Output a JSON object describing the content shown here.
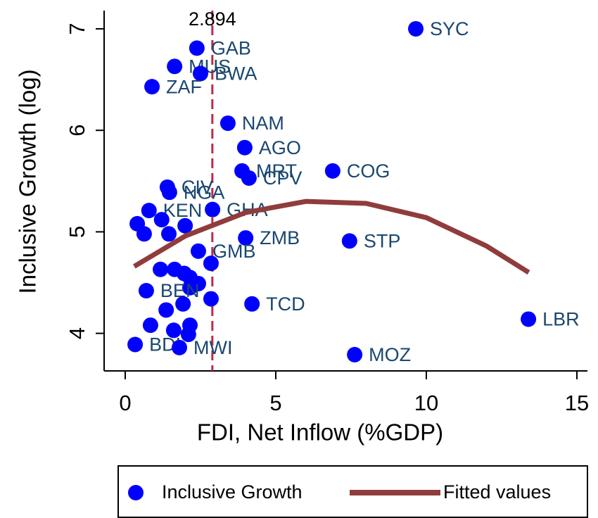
{
  "chart_data": {
    "type": "scatter",
    "x_label": "FDI, Net Inflow (%GDP)",
    "y_label": "Inclusive Growth (log)",
    "xlim": [
      -0.7,
      15.35
    ],
    "ylim": [
      3.63,
      7.18
    ],
    "xticks": [
      0,
      5,
      10,
      15
    ],
    "yticks": [
      4,
      5,
      6,
      7
    ],
    "reference_line": {
      "x": 2.894,
      "color": "#c0284a"
    },
    "series": [
      {
        "name": "Inclusive Growth",
        "type": "scatter",
        "color": "#0000ff",
        "label_color": "#1a476f",
        "x": [
          9.65,
          2.38,
          1.64,
          2.5,
          0.89,
          3.41,
          3.97,
          3.88,
          4.11,
          6.89,
          1.4,
          1.47,
          0.79,
          2.9,
          0.4,
          1.21,
          0.63,
          1.99,
          1.45,
          4.0,
          7.45,
          2.43,
          2.85,
          1.17,
          1.64,
          1.96,
          2.15,
          2.43,
          2.15,
          0.7,
          2.85,
          4.21,
          1.92,
          1.36,
          13.39,
          0.84,
          2.15,
          1.61,
          2.1,
          0.33,
          1.8,
          7.62
        ],
        "values": [
          7.0,
          6.81,
          6.63,
          6.56,
          6.43,
          6.07,
          5.83,
          5.6,
          5.53,
          5.6,
          5.44,
          5.39,
          5.21,
          5.22,
          5.08,
          5.12,
          4.98,
          5.06,
          4.98,
          4.94,
          4.91,
          4.81,
          4.69,
          4.63,
          4.63,
          4.59,
          4.55,
          4.49,
          4.45,
          4.42,
          4.34,
          4.29,
          4.29,
          4.23,
          4.14,
          4.08,
          4.08,
          4.03,
          3.99,
          3.89,
          3.86,
          3.79
        ],
        "labels": [
          "SYC",
          "GAB",
          "MUS",
          "BWA",
          "ZAF",
          "NAM",
          "AGO",
          "MRT",
          "CPV",
          "COG",
          "CIV",
          "NGA",
          "KEN",
          "GHA",
          null,
          null,
          null,
          null,
          null,
          "ZMB",
          "STP",
          "GMB",
          null,
          null,
          null,
          null,
          null,
          null,
          null,
          "BEN",
          null,
          "TCD",
          null,
          null,
          "LBR",
          null,
          null,
          null,
          null,
          "BDI",
          "MWI",
          "MOZ"
        ]
      },
      {
        "name": "Fitted values",
        "type": "line",
        "color": "#903c3c",
        "x": [
          0.3,
          2,
          4,
          6,
          8,
          10,
          12,
          13.4
        ],
        "values": [
          4.66,
          4.96,
          5.19,
          5.3,
          5.28,
          5.14,
          4.86,
          4.6
        ]
      }
    ]
  }
}
